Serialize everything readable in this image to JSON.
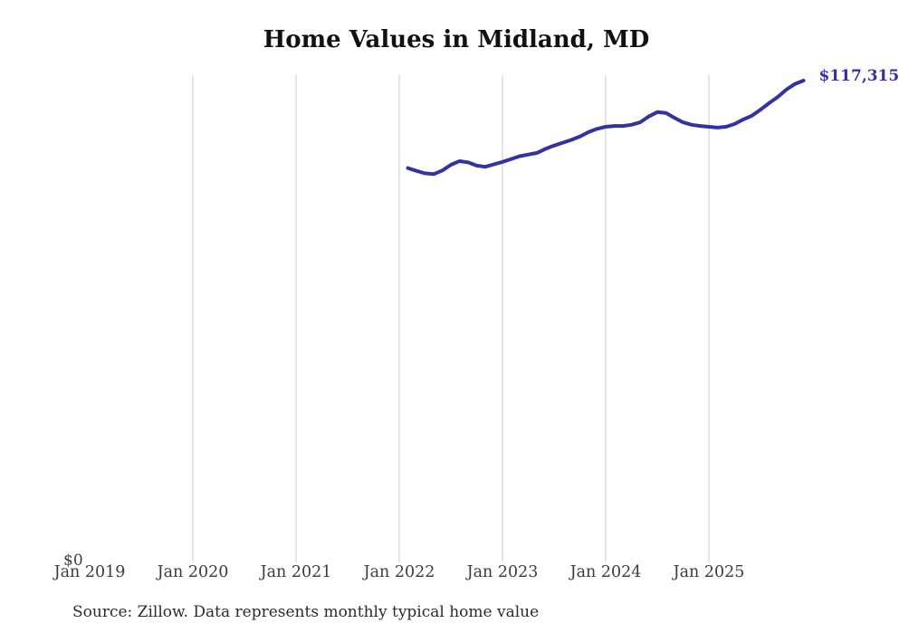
{
  "chart_data": {
    "type": "line",
    "title": "Home Values in Midland, MD",
    "series_name": "Typical home value",
    "x": [
      "2022-02",
      "2022-03",
      "2022-04",
      "2022-05",
      "2022-06",
      "2022-07",
      "2022-08",
      "2022-09",
      "2022-10",
      "2022-11",
      "2022-12",
      "2023-01",
      "2023-02",
      "2023-03",
      "2023-04",
      "2023-05",
      "2023-06",
      "2023-07",
      "2023-08",
      "2023-09",
      "2023-10",
      "2023-11",
      "2023-12",
      "2024-01",
      "2024-02",
      "2024-03",
      "2024-04",
      "2024-05",
      "2024-06",
      "2024-07",
      "2024-08",
      "2024-09",
      "2024-10",
      "2024-11",
      "2024-12",
      "2025-01",
      "2025-02",
      "2025-03",
      "2025-04",
      "2025-05",
      "2025-06",
      "2025-07",
      "2025-08",
      "2025-09",
      "2025-10",
      "2025-11",
      "2025-12"
    ],
    "values": [
      95900,
      95200,
      94600,
      94400,
      95300,
      96700,
      97600,
      97300,
      96500,
      96200,
      96800,
      97400,
      98100,
      98800,
      99200,
      99600,
      100600,
      101400,
      102100,
      102800,
      103600,
      104700,
      105500,
      106000,
      106200,
      106200,
      106500,
      107100,
      108500,
      109600,
      109400,
      108200,
      107100,
      106500,
      106200,
      106000,
      105800,
      106000,
      106700,
      107800,
      108700,
      110200,
      111800,
      113300,
      115100,
      116500,
      117315
    ],
    "x_ticks": [
      "Jan 2019",
      "Jan 2020",
      "Jan 2021",
      "Jan 2022",
      "Jan 2023",
      "Jan 2024",
      "Jan 2025"
    ],
    "x_ticks_with_gridline": [
      "Jan 2020",
      "Jan 2021",
      "Jan 2022",
      "Jan 2023",
      "Jan 2024",
      "Jan 2025"
    ],
    "y_axis": {
      "zero_label": "$0",
      "min": 0,
      "max_value_shown": 117315
    },
    "end_label": "$117,315",
    "source": "Source: Zillow. Data represents monthly typical home value",
    "legend_position": "none",
    "grid": "vertical-only",
    "colors": {
      "line": "#3431a2",
      "end_label_text": "#3431a2",
      "grid": "#cccccc",
      "tick_text": "#3c3c3c",
      "title_text": "#111111",
      "source_text": "#2b2b2b",
      "background": "#ffffff"
    }
  }
}
